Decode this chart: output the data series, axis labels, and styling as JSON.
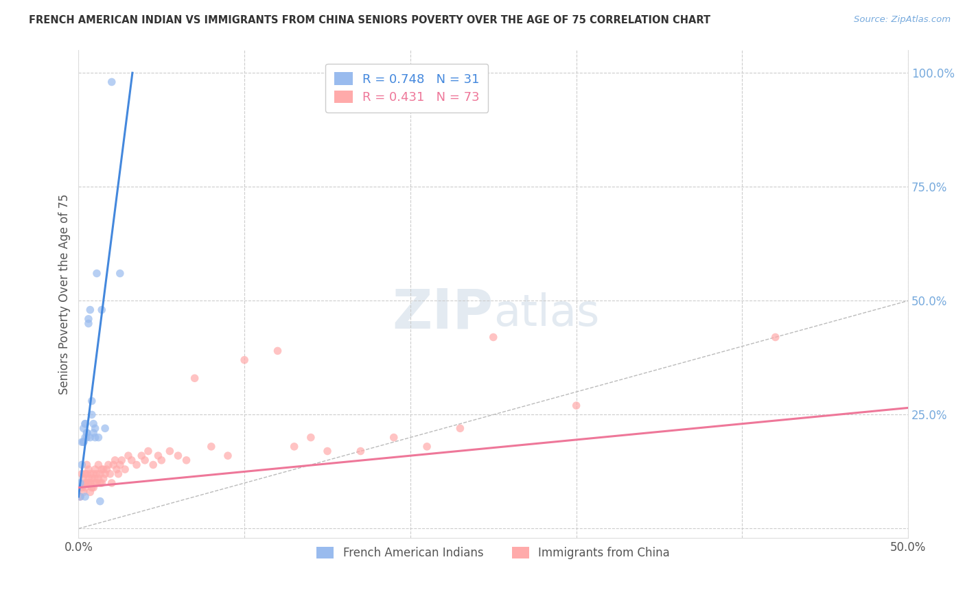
{
  "title": "FRENCH AMERICAN INDIAN VS IMMIGRANTS FROM CHINA SENIORS POVERTY OVER THE AGE OF 75 CORRELATION CHART",
  "source": "Source: ZipAtlas.com",
  "ylabel": "Seniors Poverty Over the Age of 75",
  "xlim": [
    0.0,
    0.5
  ],
  "ylim": [
    -0.02,
    1.05
  ],
  "watermark_zip": "ZIP",
  "watermark_atlas": "atlas",
  "legend_blue_r": "0.748",
  "legend_blue_n": "31",
  "legend_pink_r": "0.431",
  "legend_pink_n": "73",
  "legend_label_blue": "French American Indians",
  "legend_label_pink": "Immigrants from China",
  "blue_color": "#99BBEE",
  "pink_color": "#FFAAAA",
  "blue_line_color": "#4488DD",
  "pink_line_color": "#EE7799",
  "diagonal_color": "#BBBBBB",
  "blue_points_x": [
    0.001,
    0.001,
    0.002,
    0.002,
    0.003,
    0.003,
    0.003,
    0.004,
    0.004,
    0.004,
    0.004,
    0.005,
    0.005,
    0.005,
    0.006,
    0.006,
    0.007,
    0.007,
    0.008,
    0.008,
    0.009,
    0.009,
    0.01,
    0.01,
    0.011,
    0.012,
    0.013,
    0.014,
    0.016,
    0.02,
    0.025
  ],
  "blue_points_y": [
    0.07,
    0.1,
    0.14,
    0.19,
    0.19,
    0.22,
    0.19,
    0.2,
    0.23,
    0.23,
    0.07,
    0.21,
    0.2,
    0.21,
    0.46,
    0.45,
    0.2,
    0.48,
    0.25,
    0.28,
    0.21,
    0.23,
    0.22,
    0.2,
    0.56,
    0.2,
    0.06,
    0.48,
    0.22,
    0.98,
    0.56
  ],
  "pink_points_x": [
    0.001,
    0.002,
    0.002,
    0.003,
    0.003,
    0.004,
    0.004,
    0.004,
    0.005,
    0.005,
    0.005,
    0.006,
    0.006,
    0.006,
    0.007,
    0.007,
    0.007,
    0.008,
    0.008,
    0.009,
    0.009,
    0.01,
    0.01,
    0.01,
    0.011,
    0.011,
    0.012,
    0.012,
    0.013,
    0.013,
    0.014,
    0.014,
    0.015,
    0.015,
    0.016,
    0.017,
    0.018,
    0.019,
    0.02,
    0.021,
    0.022,
    0.023,
    0.024,
    0.025,
    0.026,
    0.028,
    0.03,
    0.032,
    0.035,
    0.038,
    0.04,
    0.042,
    0.045,
    0.048,
    0.05,
    0.055,
    0.06,
    0.065,
    0.07,
    0.08,
    0.09,
    0.1,
    0.12,
    0.13,
    0.14,
    0.15,
    0.17,
    0.19,
    0.21,
    0.23,
    0.25,
    0.3,
    0.42
  ],
  "pink_points_y": [
    0.07,
    0.09,
    0.12,
    0.08,
    0.11,
    0.09,
    0.12,
    0.1,
    0.1,
    0.12,
    0.14,
    0.1,
    0.13,
    0.11,
    0.08,
    0.12,
    0.1,
    0.09,
    0.11,
    0.12,
    0.09,
    0.1,
    0.13,
    0.11,
    0.1,
    0.12,
    0.11,
    0.14,
    0.12,
    0.1,
    0.13,
    0.1,
    0.11,
    0.13,
    0.12,
    0.13,
    0.14,
    0.12,
    0.1,
    0.14,
    0.15,
    0.13,
    0.12,
    0.14,
    0.15,
    0.13,
    0.16,
    0.15,
    0.14,
    0.16,
    0.15,
    0.17,
    0.14,
    0.16,
    0.15,
    0.17,
    0.16,
    0.15,
    0.33,
    0.18,
    0.16,
    0.37,
    0.39,
    0.18,
    0.2,
    0.17,
    0.17,
    0.2,
    0.18,
    0.22,
    0.42,
    0.27,
    0.42
  ],
  "blue_line_x0": 0.0,
  "blue_line_y0": 0.07,
  "blue_line_x1": 0.022,
  "blue_line_y1": 0.7,
  "pink_line_x0": 0.0,
  "pink_line_y0": 0.09,
  "pink_line_x1": 0.5,
  "pink_line_y1": 0.265
}
